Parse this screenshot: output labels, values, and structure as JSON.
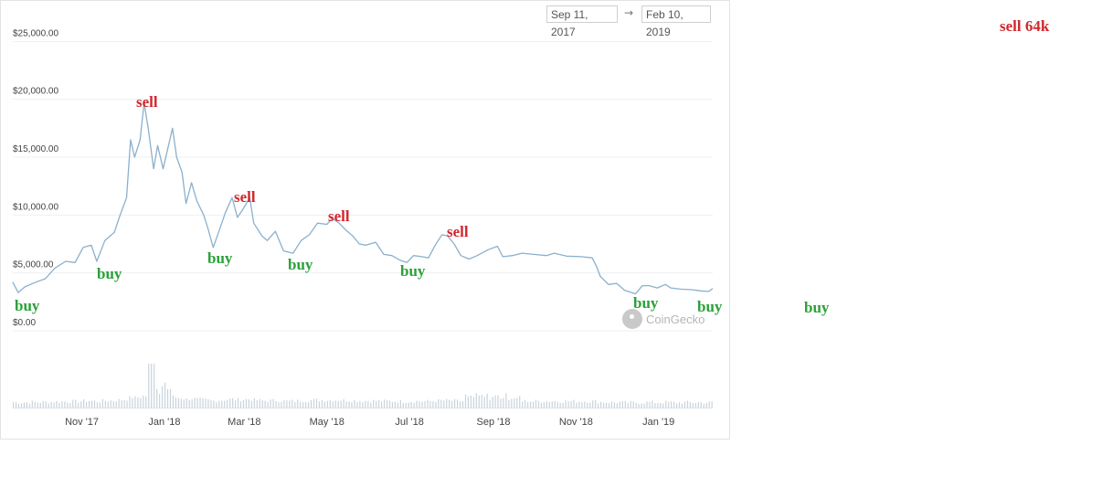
{
  "date_range": {
    "from": "Sep 11, 2017",
    "arrow": "→",
    "to": "Feb 10, 2019"
  },
  "watermark": "CoinGecko",
  "colors": {
    "price_line": "#8bb0cc",
    "volume_bar": "#c8d3dc",
    "gridline": "#eef0f2",
    "sell": "#d0282e",
    "buy": "#2aa138"
  },
  "annotations": [
    {
      "text": "sell",
      "kind": "sell"
    },
    {
      "text": "sell",
      "kind": "sell"
    },
    {
      "text": "sell",
      "kind": "sell"
    },
    {
      "text": "sell",
      "kind": "sell"
    },
    {
      "text": "sell 64k",
      "kind": "sell"
    },
    {
      "text": "buy",
      "kind": "buy"
    },
    {
      "text": "buy",
      "kind": "buy"
    },
    {
      "text": "buy",
      "kind": "buy"
    },
    {
      "text": "buy",
      "kind": "buy"
    },
    {
      "text": "buy",
      "kind": "buy"
    },
    {
      "text": "buy",
      "kind": "buy"
    },
    {
      "text": "buy",
      "kind": "buy"
    },
    {
      "text": "buy",
      "kind": "buy"
    }
  ],
  "chart_data": {
    "type": "line",
    "title": "",
    "xlabel": "",
    "ylabel": "",
    "x_tick_labels": [
      "Nov '17",
      "Jan '18",
      "Mar '18",
      "May '18",
      "Jul '18",
      "Sep '18",
      "Nov '18",
      "Jan '19"
    ],
    "y_tick_labels": [
      "$0.00",
      "$5,000.00",
      "$10,000.00",
      "$15,000.00",
      "$20,000.00",
      "$25,000.00"
    ],
    "y_ticks": [
      0,
      5000,
      10000,
      15000,
      20000,
      25000
    ],
    "ylim": [
      0,
      25000
    ],
    "xlim": [
      "2017-09-11",
      "2019-02-10"
    ],
    "grid": true,
    "series": [
      {
        "values": [
          [
            "2017-09-11",
            4200
          ],
          [
            "2017-09-15",
            3300
          ],
          [
            "2017-09-20",
            3800
          ],
          [
            "2017-09-28",
            4200
          ],
          [
            "2017-10-05",
            4500
          ],
          [
            "2017-10-12",
            5400
          ],
          [
            "2017-10-20",
            6000
          ],
          [
            "2017-10-27",
            5900
          ],
          [
            "2017-11-02",
            7200
          ],
          [
            "2017-11-08",
            7400
          ],
          [
            "2017-11-12",
            6000
          ],
          [
            "2017-11-18",
            7800
          ],
          [
            "2017-11-25",
            8500
          ],
          [
            "2017-11-29",
            9900
          ],
          [
            "2017-12-04",
            11500
          ],
          [
            "2017-12-07",
            16500
          ],
          [
            "2017-12-10",
            15000
          ],
          [
            "2017-12-14",
            16500
          ],
          [
            "2017-12-17",
            19700
          ],
          [
            "2017-12-20",
            17500
          ],
          [
            "2017-12-24",
            14000
          ],
          [
            "2017-12-27",
            16000
          ],
          [
            "2017-12-31",
            14000
          ],
          [
            "2018-01-03",
            15500
          ],
          [
            "2018-01-07",
            17500
          ],
          [
            "2018-01-10",
            15000
          ],
          [
            "2018-01-14",
            13700
          ],
          [
            "2018-01-17",
            11000
          ],
          [
            "2018-01-21",
            12800
          ],
          [
            "2018-01-25",
            11200
          ],
          [
            "2018-01-30",
            10000
          ],
          [
            "2018-02-02",
            8900
          ],
          [
            "2018-02-06",
            7200
          ],
          [
            "2018-02-10",
            8500
          ],
          [
            "2018-02-15",
            10200
          ],
          [
            "2018-02-20",
            11500
          ],
          [
            "2018-02-24",
            9800
          ],
          [
            "2018-02-28",
            10500
          ],
          [
            "2018-03-05",
            11500
          ],
          [
            "2018-03-08",
            9300
          ],
          [
            "2018-03-14",
            8200
          ],
          [
            "2018-03-18",
            7800
          ],
          [
            "2018-03-24",
            8600
          ],
          [
            "2018-03-30",
            6900
          ],
          [
            "2018-04-06",
            6700
          ],
          [
            "2018-04-12",
            7800
          ],
          [
            "2018-04-18",
            8300
          ],
          [
            "2018-04-24",
            9300
          ],
          [
            "2018-05-01",
            9200
          ],
          [
            "2018-05-05",
            9700
          ],
          [
            "2018-05-10",
            9300
          ],
          [
            "2018-05-15",
            8700
          ],
          [
            "2018-05-20",
            8200
          ],
          [
            "2018-05-25",
            7500
          ],
          [
            "2018-05-30",
            7400
          ],
          [
            "2018-06-06",
            7650
          ],
          [
            "2018-06-12",
            6600
          ],
          [
            "2018-06-18",
            6500
          ],
          [
            "2018-06-24",
            6100
          ],
          [
            "2018-06-29",
            5900
          ],
          [
            "2018-07-04",
            6500
          ],
          [
            "2018-07-10",
            6400
          ],
          [
            "2018-07-15",
            6300
          ],
          [
            "2018-07-20",
            7400
          ],
          [
            "2018-07-25",
            8300
          ],
          [
            "2018-07-29",
            8200
          ],
          [
            "2018-08-03",
            7500
          ],
          [
            "2018-08-08",
            6500
          ],
          [
            "2018-08-14",
            6200
          ],
          [
            "2018-08-20",
            6500
          ],
          [
            "2018-08-28",
            7000
          ],
          [
            "2018-09-04",
            7300
          ],
          [
            "2018-09-08",
            6400
          ],
          [
            "2018-09-15",
            6500
          ],
          [
            "2018-09-22",
            6700
          ],
          [
            "2018-10-01",
            6600
          ],
          [
            "2018-10-10",
            6500
          ],
          [
            "2018-10-16",
            6700
          ],
          [
            "2018-10-25",
            6450
          ],
          [
            "2018-11-05",
            6400
          ],
          [
            "2018-11-13",
            6300
          ],
          [
            "2018-11-16",
            5600
          ],
          [
            "2018-11-19",
            4700
          ],
          [
            "2018-11-25",
            4000
          ],
          [
            "2018-12-01",
            4100
          ],
          [
            "2018-12-07",
            3500
          ],
          [
            "2018-12-15",
            3200
          ],
          [
            "2018-12-20",
            3900
          ],
          [
            "2018-12-25",
            3900
          ],
          [
            "2018-12-31",
            3700
          ],
          [
            "2019-01-06",
            4000
          ],
          [
            "2019-01-10",
            3700
          ],
          [
            "2019-01-17",
            3600
          ],
          [
            "2019-01-25",
            3550
          ],
          [
            "2019-02-01",
            3450
          ],
          [
            "2019-02-07",
            3400
          ],
          [
            "2019-02-10",
            3650
          ]
        ]
      }
    ]
  }
}
